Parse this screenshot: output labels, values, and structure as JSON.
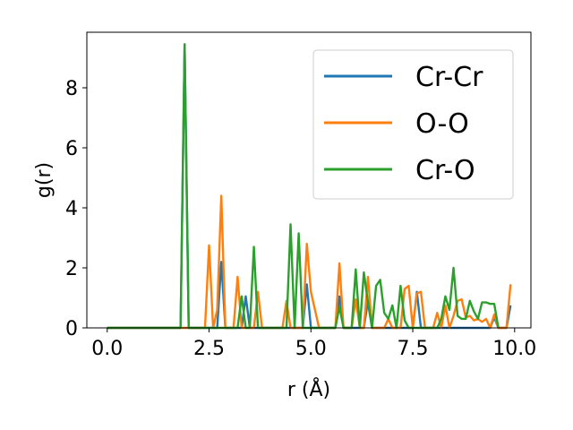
{
  "chart_data": {
    "type": "line",
    "title": "",
    "xlabel": "r (Å)",
    "ylabel": "g(r)",
    "xlim": [
      -0.5,
      10.4
    ],
    "ylim": [
      0,
      9.85
    ],
    "xticks": [
      0.0,
      2.5,
      5.0,
      7.5,
      10.0
    ],
    "xtick_labels": [
      "0.0",
      "2.5",
      "5.0",
      "7.5",
      "10.0"
    ],
    "yticks": [
      0,
      2,
      4,
      6,
      8
    ],
    "ytick_labels": [
      "0",
      "2",
      "4",
      "6",
      "8"
    ],
    "grid": false,
    "legend_position": "upper right",
    "series": [
      {
        "name": "Cr-Cr",
        "color": "#1f77b4",
        "x": [
          0.0,
          1.8,
          1.9,
          2.0,
          2.7,
          2.8,
          2.9,
          3.3,
          3.4,
          3.5,
          4.8,
          4.9,
          5.0,
          5.6,
          5.7,
          5.8,
          6.3,
          6.4,
          6.5,
          7.5,
          7.6,
          7.7,
          9.4,
          9.5,
          9.6,
          9.8,
          9.9
        ],
        "y": [
          0,
          0,
          9.45,
          0,
          0,
          2.2,
          0,
          0,
          1.05,
          0,
          0,
          1.45,
          0,
          0,
          1.05,
          0,
          0,
          0.9,
          0,
          0,
          1.2,
          0,
          0,
          0.35,
          0,
          0,
          0.75
        ]
      },
      {
        "name": "O-O",
        "color": "#ff7f0e",
        "x": [
          0.0,
          2.4,
          2.5,
          2.6,
          2.7,
          2.8,
          2.9,
          3.1,
          3.2,
          3.3,
          3.6,
          3.7,
          3.8,
          4.3,
          4.4,
          4.5,
          4.8,
          4.9,
          5.0,
          5.2,
          5.3,
          5.6,
          5.7,
          5.8,
          6.0,
          6.1,
          6.2,
          6.3,
          6.4,
          6.5,
          6.6,
          6.8,
          6.9,
          7.0,
          7.2,
          7.3,
          7.4,
          7.5,
          7.6,
          7.7,
          7.8,
          8.0,
          8.1,
          8.2,
          8.3,
          8.4,
          8.5,
          8.6,
          8.7,
          8.8,
          8.9,
          9.0,
          9.1,
          9.2,
          9.3,
          9.4,
          9.5,
          9.6,
          9.7,
          9.8,
          9.9
        ],
        "y": [
          0,
          0,
          2.75,
          0,
          0.6,
          4.4,
          0,
          0,
          1.7,
          0,
          0,
          1.2,
          0,
          0,
          0.9,
          0,
          0,
          2.8,
          1.2,
          0,
          0,
          0,
          2.15,
          0,
          0,
          0.95,
          0,
          0,
          1.7,
          0,
          0,
          0,
          0.3,
          0,
          0,
          1.3,
          1.4,
          0,
          1.15,
          1.2,
          0,
          0,
          0.5,
          0,
          0.75,
          0,
          0.4,
          0.9,
          0.95,
          0.35,
          0.4,
          0.25,
          0.3,
          0.2,
          0.3,
          0,
          0.45,
          0,
          0,
          0,
          1.45
        ]
      },
      {
        "name": "Cr-O",
        "color": "#2ca02c",
        "x": [
          0.0,
          1.8,
          1.9,
          2.0,
          3.2,
          3.3,
          3.4,
          3.5,
          3.6,
          3.7,
          4.4,
          4.5,
          4.6,
          4.7,
          4.8,
          4.9,
          5.6,
          5.7,
          5.8,
          6.0,
          6.1,
          6.2,
          6.3,
          6.4,
          6.5,
          6.6,
          6.7,
          6.8,
          6.9,
          7.0,
          7.1,
          7.2,
          7.3,
          7.4,
          7.5,
          7.6,
          7.7,
          7.8,
          8.0,
          8.1,
          8.2,
          8.3,
          8.4,
          8.5,
          8.6,
          8.7,
          8.8,
          8.9,
          9.0,
          9.1,
          9.2,
          9.3,
          9.4,
          9.5,
          9.6
        ],
        "y": [
          0,
          0,
          9.45,
          0,
          0,
          1.05,
          0,
          0,
          2.7,
          0,
          0,
          3.45,
          0,
          3.15,
          0,
          0,
          0,
          0.7,
          0,
          0,
          1.95,
          0,
          1.85,
          0.85,
          0,
          1.4,
          1.6,
          0.5,
          0.3,
          0.75,
          0,
          1.4,
          0.25,
          0,
          0,
          0,
          0,
          0,
          0,
          0,
          0.3,
          1.05,
          0.6,
          2.0,
          0.4,
          0.3,
          0.3,
          0.9,
          0.55,
          0.3,
          0.85,
          0.85,
          0.8,
          0.8,
          0
        ]
      }
    ]
  }
}
